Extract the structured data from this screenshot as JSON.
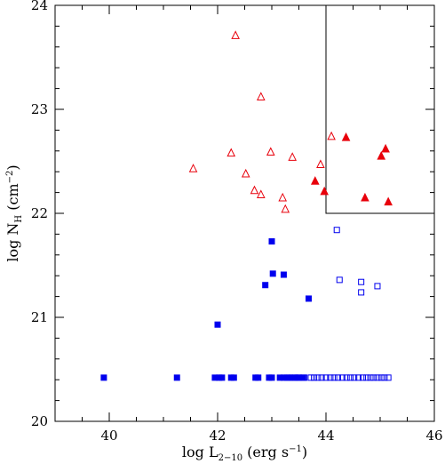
{
  "chart_data": {
    "type": "scatter",
    "title": "",
    "xlabel": {
      "prefix": "log L",
      "subscript": "2−10",
      "suffix": " (erg s",
      "superscript": "−1",
      "close": ")"
    },
    "ylabel": {
      "prefix": "log N",
      "subscript": "H",
      "suffix": " (cm",
      "superscript": "−2",
      "close": ")"
    },
    "xlim": [
      39,
      46
    ],
    "ylim": [
      20,
      24
    ],
    "xticks": [
      40,
      42,
      44,
      46
    ],
    "yticks": [
      20,
      21,
      22,
      23,
      24
    ],
    "x_minor_step": 0.5,
    "y_minor_step": 0.2,
    "box_region": {
      "x_from": 44.0,
      "x_to": 46.0,
      "y_from": 22.0,
      "y_to": 24.0
    },
    "grid": false,
    "series": [
      {
        "marker": "triangle-open",
        "color": "#e8000b",
        "points": [
          [
            41.55,
            22.43
          ],
          [
            42.25,
            22.58
          ],
          [
            42.33,
            23.71
          ],
          [
            42.52,
            22.38
          ],
          [
            42.68,
            22.22
          ],
          [
            42.8,
            23.12
          ],
          [
            42.8,
            22.18
          ],
          [
            42.98,
            22.59
          ],
          [
            43.2,
            22.15
          ],
          [
            43.25,
            22.04
          ],
          [
            43.38,
            22.54
          ],
          [
            43.9,
            22.47
          ],
          [
            44.1,
            22.74
          ]
        ]
      },
      {
        "marker": "triangle-filled",
        "color": "#e8000b",
        "points": [
          [
            43.8,
            22.31
          ],
          [
            43.97,
            22.21
          ],
          [
            44.37,
            22.73
          ],
          [
            44.72,
            22.15
          ],
          [
            45.02,
            22.55
          ],
          [
            45.1,
            22.62
          ],
          [
            45.15,
            22.11
          ]
        ]
      },
      {
        "marker": "square-filled",
        "color": "#0000ee",
        "points": [
          [
            39.9,
            20.42
          ],
          [
            41.25,
            20.42
          ],
          [
            41.95,
            20.42
          ],
          [
            42.0,
            20.93
          ],
          [
            42.03,
            20.42
          ],
          [
            42.08,
            20.42
          ],
          [
            42.25,
            20.42
          ],
          [
            42.3,
            20.42
          ],
          [
            42.7,
            20.42
          ],
          [
            42.75,
            20.42
          ],
          [
            42.88,
            21.31
          ],
          [
            42.95,
            20.42
          ],
          [
            43.0,
            20.42
          ],
          [
            43.0,
            21.73
          ],
          [
            43.02,
            21.42
          ],
          [
            43.15,
            20.42
          ],
          [
            43.22,
            20.42
          ],
          [
            43.22,
            21.41
          ],
          [
            43.28,
            20.42
          ],
          [
            43.33,
            20.42
          ],
          [
            43.38,
            20.42
          ],
          [
            43.43,
            20.42
          ],
          [
            43.48,
            20.42
          ],
          [
            43.58,
            20.42
          ],
          [
            43.68,
            21.18
          ]
        ]
      },
      {
        "marker": "square-open",
        "color": "#0000ee",
        "points": [
          [
            43.5,
            20.42
          ],
          [
            43.6,
            20.42
          ],
          [
            43.72,
            20.42
          ],
          [
            43.78,
            20.42
          ],
          [
            43.85,
            20.42
          ],
          [
            43.92,
            20.42
          ],
          [
            44.0,
            20.42
          ],
          [
            44.08,
            20.42
          ],
          [
            44.15,
            20.42
          ],
          [
            44.2,
            21.84
          ],
          [
            44.22,
            20.42
          ],
          [
            44.25,
            21.36
          ],
          [
            44.3,
            20.42
          ],
          [
            44.38,
            20.42
          ],
          [
            44.45,
            20.42
          ],
          [
            44.52,
            20.42
          ],
          [
            44.6,
            20.42
          ],
          [
            44.65,
            21.34
          ],
          [
            44.65,
            21.24
          ],
          [
            44.68,
            20.42
          ],
          [
            44.75,
            20.42
          ],
          [
            44.82,
            20.42
          ],
          [
            44.88,
            20.42
          ],
          [
            44.95,
            21.3
          ],
          [
            44.95,
            20.42
          ],
          [
            45.02,
            20.42
          ],
          [
            45.08,
            20.42
          ],
          [
            45.15,
            20.42
          ]
        ]
      }
    ]
  }
}
